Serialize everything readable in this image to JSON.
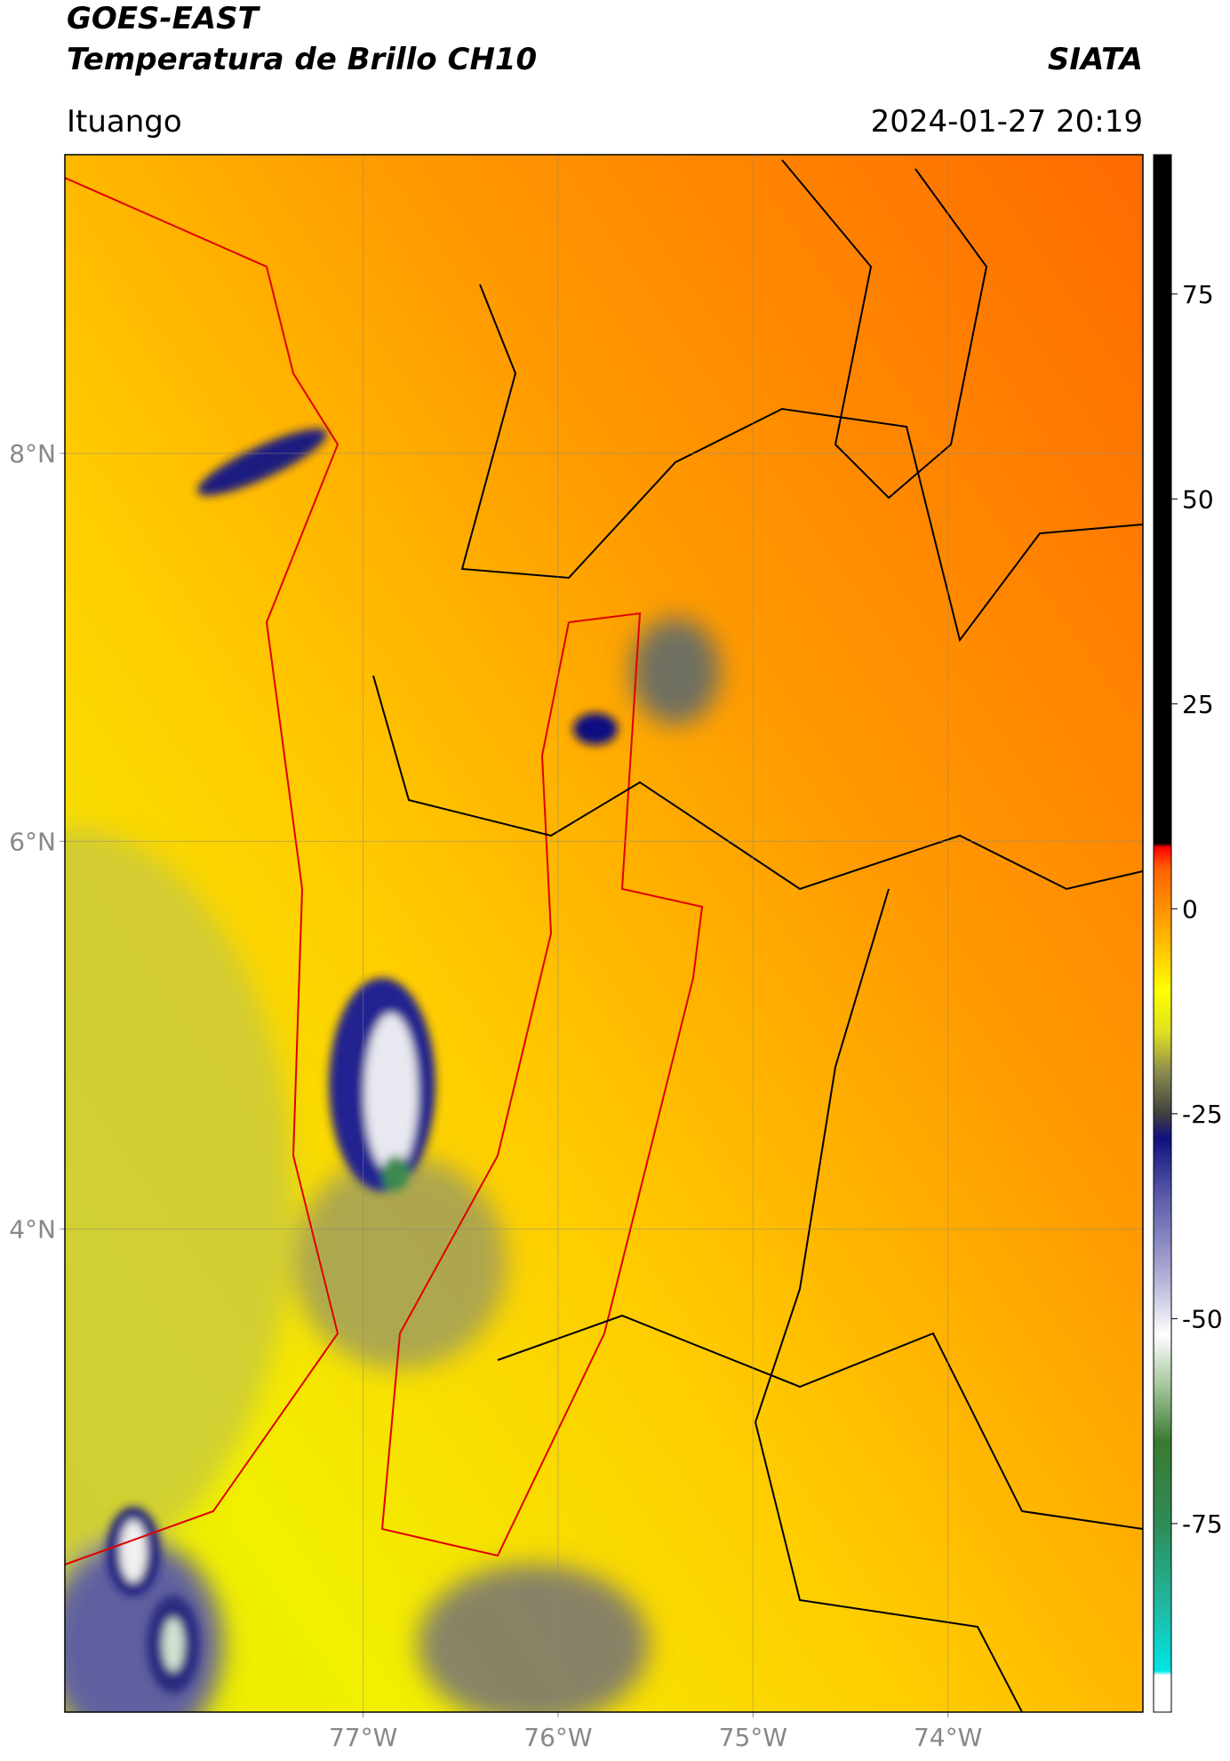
{
  "header": {
    "title": "GOES-EAST",
    "subtitle": "Temperatura de Brillo CH10",
    "org": "SIATA",
    "location": "Ituango",
    "datetime": "2024-01-27 20:19"
  },
  "map": {
    "xlim": [
      -78.53,
      -73.0
    ],
    "ylim": [
      1.51,
      9.54
    ],
    "xticks": [
      {
        "value": -77,
        "label": "77°W"
      },
      {
        "value": -76,
        "label": "76°W"
      },
      {
        "value": -75,
        "label": "75°W"
      },
      {
        "value": -74,
        "label": "74°W"
      }
    ],
    "yticks": [
      {
        "value": 4,
        "label": "4°N"
      },
      {
        "value": 6,
        "label": "6°N"
      },
      {
        "value": 8,
        "label": "8°N"
      }
    ],
    "grid": true
  },
  "colorbar": {
    "lim": [
      -98,
      92
    ],
    "ticks": [
      -75,
      -50,
      -25,
      0,
      25,
      50,
      75
    ],
    "colormap": [
      {
        "value": -98,
        "color": "#ffffff"
      },
      {
        "value": -93.5,
        "color": "#ffffff"
      },
      {
        "value": -93,
        "color": "#00e5e5"
      },
      {
        "value": -85,
        "color": "#20b8a0"
      },
      {
        "value": -75,
        "color": "#2e8b57"
      },
      {
        "value": -65,
        "color": "#3a7a30"
      },
      {
        "value": -58,
        "color": "#a8c8a0"
      },
      {
        "value": -52,
        "color": "#ffffff"
      },
      {
        "value": -45,
        "color": "#b0b0d8"
      },
      {
        "value": -35,
        "color": "#5a5aa8"
      },
      {
        "value": -28,
        "color": "#101080"
      },
      {
        "value": -25,
        "color": "#404040"
      },
      {
        "value": -20,
        "color": "#8a8a50"
      },
      {
        "value": -15,
        "color": "#e0e020"
      },
      {
        "value": -10,
        "color": "#ffff00"
      },
      {
        "value": -3,
        "color": "#ffb000"
      },
      {
        "value": 5,
        "color": "#ff6000"
      },
      {
        "value": 7.5,
        "color": "#ff0000"
      },
      {
        "value": 8,
        "color": "#000000"
      },
      {
        "value": 92,
        "color": "#000000"
      }
    ]
  }
}
